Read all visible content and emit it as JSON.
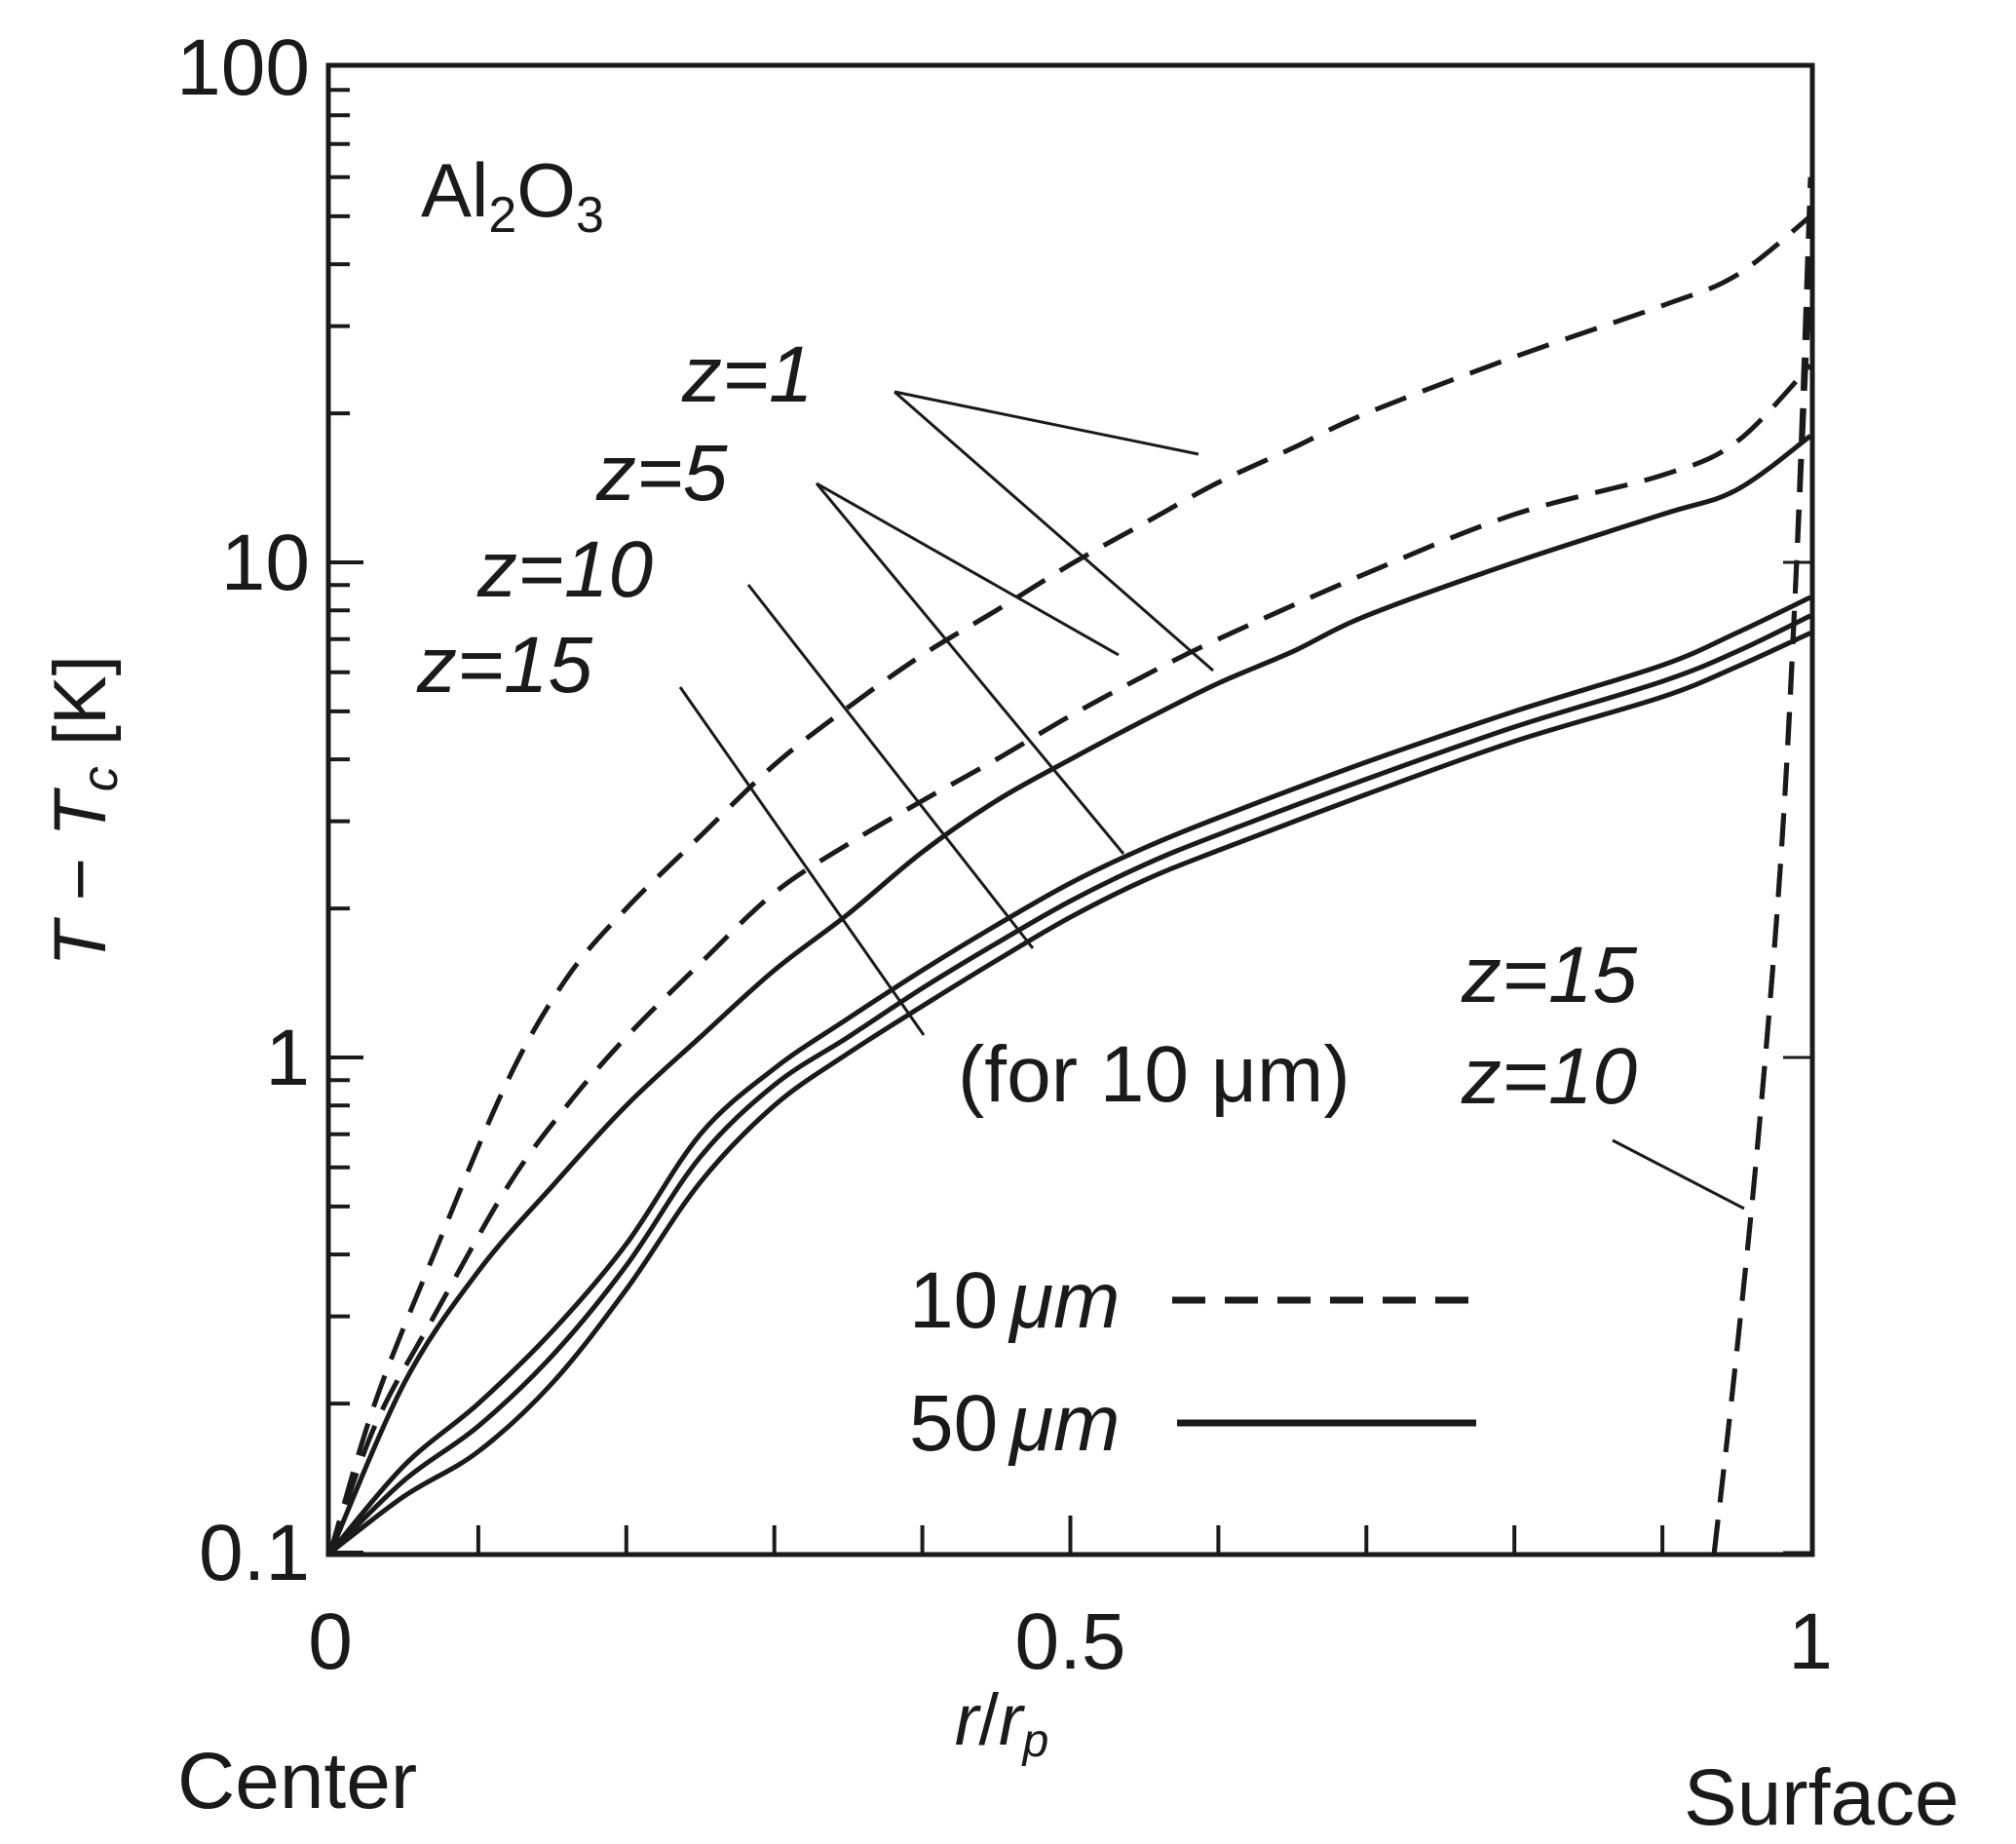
{
  "chart_data": {
    "type": "line",
    "title": "",
    "material": {
      "prefix": "Al",
      "sub1": "2",
      "mid": "O",
      "sub2": "3"
    },
    "xlabel": {
      "a": "r",
      "slash": "/",
      "b": "r",
      "sub": "p"
    },
    "ylabel": {
      "a": "T",
      "dash": " − ",
      "b": "T",
      "sub": "c",
      "unit": " [K]"
    },
    "xlim": [
      0,
      1
    ],
    "ylim": [
      0.1,
      100
    ],
    "yscale": "log",
    "x_ticks": [
      {
        "value": 0,
        "label": "0"
      },
      {
        "value": 0.5,
        "label": "0.5"
      },
      {
        "value": 1,
        "label": "1"
      }
    ],
    "y_ticks": [
      {
        "value": 0.1,
        "label": "0.1"
      },
      {
        "value": 1,
        "label": "1"
      },
      {
        "value": 10,
        "label": "10"
      },
      {
        "value": 100,
        "label": "100"
      }
    ],
    "position_labels": {
      "left": "Center",
      "right": "Surface"
    },
    "legend": [
      {
        "label_num": "10",
        "label_unit": "μm",
        "style": "dashed",
        "name": "10 μm"
      },
      {
        "label_num": "50",
        "label_unit": "μm",
        "style": "solid",
        "name": "50 μm"
      }
    ],
    "annotations": {
      "z1": "z=1",
      "z5": "z=5",
      "z10": "z=10",
      "z15": "z=15",
      "z15_right": "z=15",
      "z10_right": "z=10",
      "for10": "(for 10 μm)"
    },
    "series": [
      {
        "name": "10 μm, z=1",
        "style": "dashed",
        "x": [
          0,
          0.03,
          0.07,
          0.12,
          0.16,
          0.2,
          0.25,
          0.3,
          0.35,
          0.4,
          0.45,
          0.5,
          0.55,
          0.6,
          0.65,
          0.7,
          0.8,
          0.9,
          0.95,
          1.0
        ],
        "y": [
          0.1,
          0.2,
          0.4,
          0.9,
          1.45,
          2.0,
          2.8,
          3.9,
          5.1,
          6.5,
          8.0,
          9.9,
          12.0,
          14.5,
          17.0,
          20.0,
          26.0,
          33.0,
          38.0,
          50.0
        ]
      },
      {
        "name": "10 μm, z=5",
        "style": "dashed",
        "x": [
          0,
          0.03,
          0.07,
          0.12,
          0.16,
          0.2,
          0.25,
          0.3,
          0.35,
          0.4,
          0.45,
          0.5,
          0.55,
          0.6,
          0.7,
          0.8,
          0.9,
          0.95,
          1.0
        ],
        "y": [
          0.1,
          0.18,
          0.3,
          0.55,
          0.8,
          1.1,
          1.55,
          2.15,
          2.7,
          3.3,
          4.0,
          4.9,
          5.9,
          7.0,
          9.5,
          12.5,
          15.0,
          17.5,
          25.0
        ]
      },
      {
        "name": "10 μm, z=10",
        "style": "dashed",
        "x": [
          0.935,
          0.95,
          0.965,
          0.98,
          0.99,
          1.0
        ],
        "y": [
          0.1,
          0.25,
          0.7,
          2.5,
          9.0,
          40.0
        ]
      },
      {
        "name": "10 μm, z=15",
        "style": "dashed",
        "x": [
          0.935,
          0.95,
          0.965,
          0.98,
          0.99,
          1.0
        ],
        "y": [
          0.1,
          0.25,
          0.7,
          2.5,
          9.0,
          60.0
        ]
      },
      {
        "name": "50 μm, z=1",
        "style": "solid",
        "x": [
          0,
          0.05,
          0.1,
          0.15,
          0.2,
          0.25,
          0.3,
          0.35,
          0.4,
          0.45,
          0.5,
          0.55,
          0.6,
          0.65,
          0.7,
          0.8,
          0.9,
          0.95,
          1.0
        ],
        "y": [
          0.1,
          0.22,
          0.37,
          0.55,
          0.8,
          1.1,
          1.5,
          1.95,
          2.6,
          3.3,
          4.0,
          4.8,
          5.7,
          6.6,
          7.8,
          10.0,
          12.5,
          14.0,
          18.0
        ]
      },
      {
        "name": "50 μm, z=5",
        "style": "solid",
        "x": [
          0,
          0.05,
          0.1,
          0.15,
          0.2,
          0.25,
          0.3,
          0.35,
          0.4,
          0.45,
          0.5,
          0.55,
          0.6,
          0.7,
          0.8,
          0.9,
          0.95,
          1.0
        ],
        "y": [
          0.1,
          0.15,
          0.2,
          0.28,
          0.42,
          0.7,
          0.95,
          1.2,
          1.5,
          1.85,
          2.25,
          2.65,
          3.05,
          3.95,
          5.0,
          6.2,
          7.2,
          8.5
        ]
      },
      {
        "name": "50 μm, z=10",
        "style": "solid",
        "x": [
          0,
          0.05,
          0.1,
          0.15,
          0.2,
          0.25,
          0.3,
          0.35,
          0.4,
          0.45,
          0.5,
          0.55,
          0.6,
          0.7,
          0.8,
          0.9,
          0.95,
          1.0
        ],
        "y": [
          0.1,
          0.14,
          0.18,
          0.25,
          0.38,
          0.63,
          0.88,
          1.1,
          1.38,
          1.7,
          2.07,
          2.45,
          2.82,
          3.65,
          4.65,
          5.75,
          6.6,
          7.8
        ]
      },
      {
        "name": "50 μm, z=15",
        "style": "solid",
        "x": [
          0,
          0.05,
          0.1,
          0.15,
          0.2,
          0.25,
          0.3,
          0.35,
          0.4,
          0.45,
          0.5,
          0.55,
          0.6,
          0.7,
          0.8,
          0.9,
          0.95,
          1.0
        ],
        "y": [
          0.1,
          0.13,
          0.16,
          0.22,
          0.34,
          0.56,
          0.8,
          1.02,
          1.27,
          1.57,
          1.92,
          2.28,
          2.62,
          3.4,
          4.35,
          5.35,
          6.15,
          7.2
        ]
      }
    ]
  }
}
